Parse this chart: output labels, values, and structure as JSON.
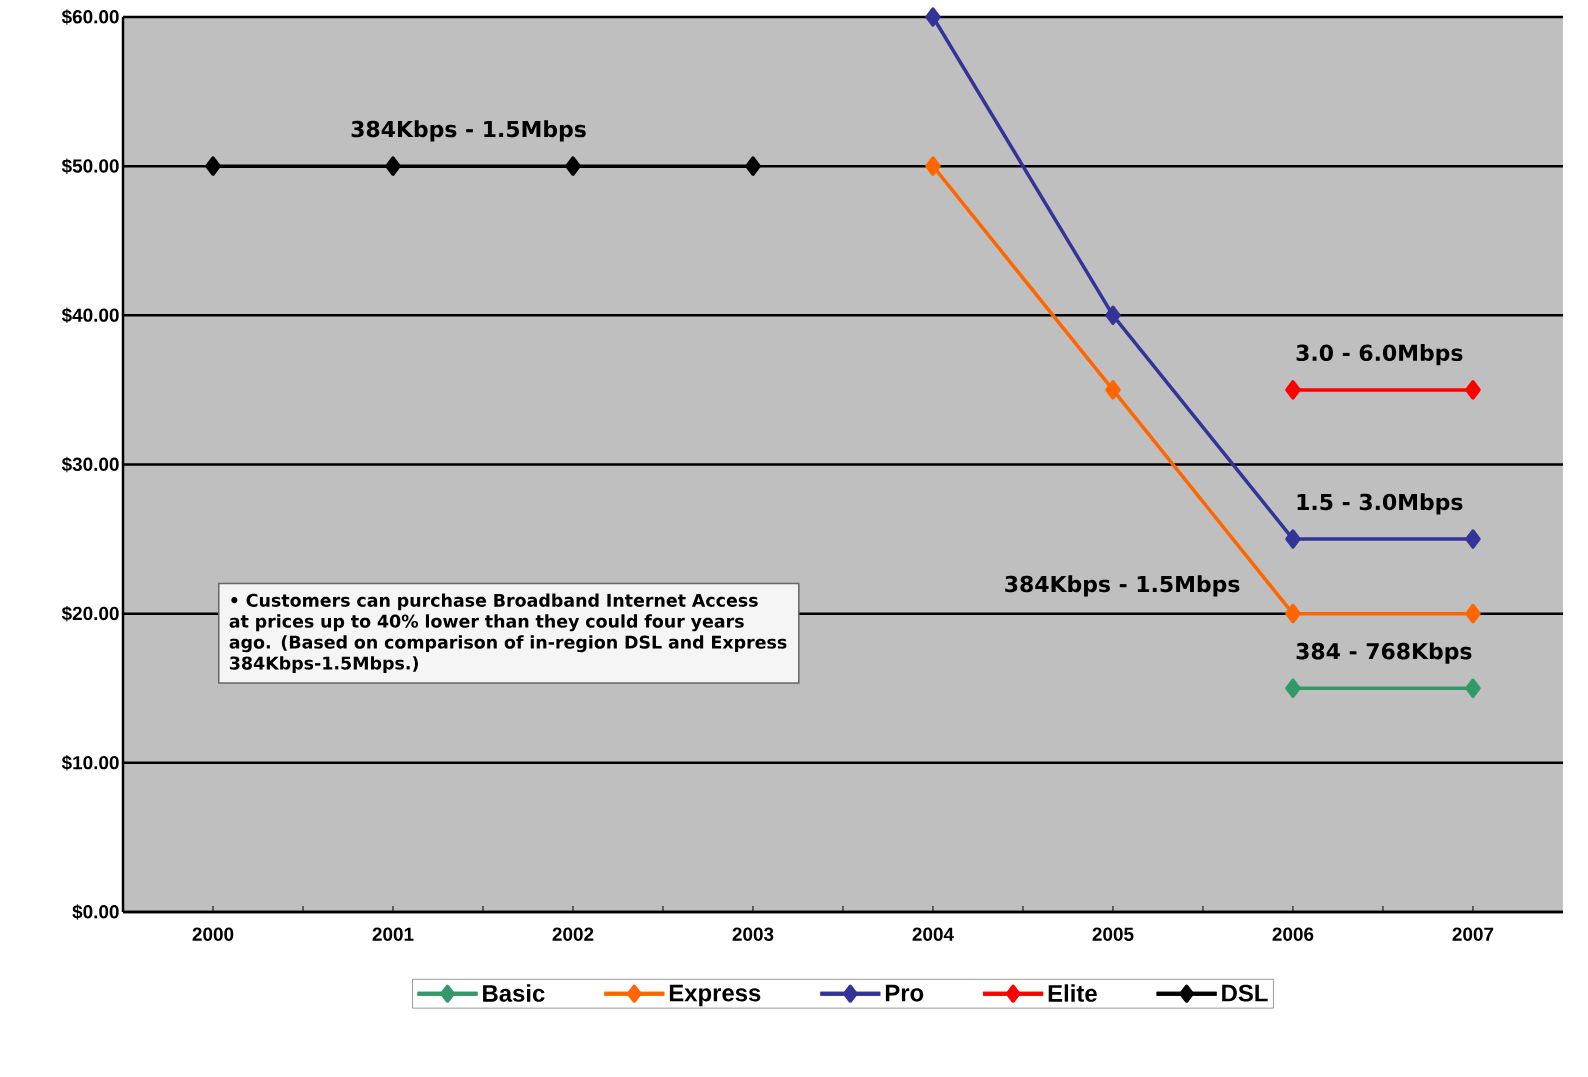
{
  "chart_data": {
    "type": "line",
    "categories": [
      "2000",
      "2001",
      "2002",
      "2003",
      "2004",
      "2005",
      "2006",
      "2007"
    ],
    "series": [
      {
        "name": "Basic",
        "color": "#339966",
        "values": [
          null,
          null,
          null,
          null,
          null,
          null,
          15,
          15
        ]
      },
      {
        "name": "Express",
        "color": "#ff6600",
        "values": [
          null,
          null,
          null,
          null,
          50,
          35,
          20,
          20
        ]
      },
      {
        "name": "Pro",
        "color": "#333399",
        "values": [
          null,
          null,
          null,
          null,
          60,
          40,
          25,
          25
        ]
      },
      {
        "name": "Elite",
        "color": "#ff0000",
        "values": [
          null,
          null,
          null,
          null,
          null,
          null,
          35,
          35
        ]
      },
      {
        "name": "DSL",
        "color": "#000000",
        "values": [
          50,
          50,
          50,
          50,
          null,
          null,
          null,
          null
        ]
      }
    ],
    "ylim": [
      0,
      60
    ],
    "yticks": [
      {
        "value": 0,
        "label": "$0.00"
      },
      {
        "value": 10,
        "label": "$10.00"
      },
      {
        "value": 20,
        "label": "$20.00"
      },
      {
        "value": 30,
        "label": "$30.00"
      },
      {
        "value": 40,
        "label": "$40.00"
      },
      {
        "value": 50,
        "label": "$50.00"
      },
      {
        "value": 60,
        "label": "$60.00"
      }
    ],
    "grid": "y",
    "legend": "bottom",
    "marker": "diamond",
    "line_style": "solid",
    "annotations": [
      "384Kbps - 1.5Mbps",
      "3.0 - 6.0Mbps",
      "1.5 - 3.0Mbps",
      "384Kbps - 1.5Mbps",
      "384 - 768Kbps",
      "• Customers can purchase Broadband Internet Access at prices up to 40% lower than they could four years ago. (Based on comparison of in-region DSL and Express 384Kbps-1.5Mbps.)"
    ]
  }
}
